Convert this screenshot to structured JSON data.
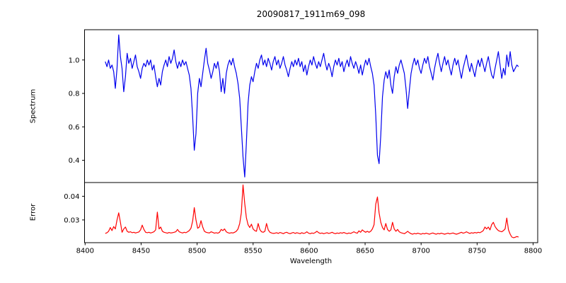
{
  "title": "20090817_1911m69_098",
  "background_color": "#ffffff",
  "axis_color": "#000000",
  "xaxis": {
    "label": "Wavelength",
    "ticks": [
      8400,
      8450,
      8500,
      8550,
      8600,
      8650,
      8700,
      8750,
      8800
    ],
    "tick_labels": [
      "8400",
      "8450",
      "8500",
      "8550",
      "8600",
      "8650",
      "8700",
      "8750",
      "8800"
    ]
  },
  "chart_data": [
    {
      "type": "line",
      "name": "spectrum",
      "ylabel": "Spectrum",
      "color": "#0000ee",
      "xlim": [
        8399.5,
        8804.1
      ],
      "ylim": [
        0.267,
        1.181
      ],
      "yticks": [
        0.4,
        0.6,
        0.8,
        1.0
      ],
      "ytick_labels": [
        "0.4",
        "0.6",
        "0.8",
        "1.0"
      ],
      "x0": 8418,
      "dx": 1.5,
      "values": [
        0.99,
        0.96,
        1.0,
        0.95,
        0.97,
        0.93,
        0.83,
        0.95,
        1.15,
        1.02,
        0.95,
        0.81,
        0.9,
        1.04,
        0.98,
        1.01,
        0.95,
        0.99,
        1.03,
        0.96,
        0.93,
        0.89,
        0.95,
        0.98,
        0.96,
        1.0,
        0.97,
        1.0,
        0.94,
        0.97,
        0.9,
        0.84,
        0.89,
        0.85,
        0.93,
        0.97,
        1.0,
        0.96,
        1.02,
        0.98,
        1.01,
        1.06,
        0.99,
        0.95,
        0.99,
        0.96,
        1.0,
        0.97,
        0.99,
        0.95,
        0.91,
        0.83,
        0.66,
        0.46,
        0.56,
        0.8,
        0.89,
        0.84,
        0.92,
        1.0,
        1.07,
        0.98,
        0.94,
        0.89,
        0.93,
        0.98,
        0.95,
        0.99,
        0.93,
        0.81,
        0.89,
        0.8,
        0.92,
        0.97,
        1.0,
        0.97,
        1.01,
        0.96,
        0.92,
        0.86,
        0.77,
        0.6,
        0.42,
        0.3,
        0.5,
        0.74,
        0.85,
        0.9,
        0.87,
        0.93,
        0.98,
        0.95,
        1.0,
        1.03,
        0.97,
        1.0,
        0.96,
        1.01,
        0.98,
        0.94,
        0.99,
        1.02,
        0.97,
        1.0,
        0.95,
        0.98,
        1.02,
        0.97,
        0.94,
        0.9,
        0.95,
        0.99,
        0.96,
        1.0,
        0.97,
        1.01,
        0.96,
        0.99,
        0.93,
        0.97,
        0.91,
        0.96,
        1.0,
        0.97,
        1.02,
        0.98,
        0.95,
        0.99,
        0.96,
        1.0,
        1.04,
        0.98,
        0.94,
        0.98,
        0.95,
        0.9,
        0.96,
        1.0,
        0.97,
        1.01,
        0.96,
        0.99,
        0.93,
        0.97,
        1.0,
        0.96,
        1.02,
        0.98,
        0.95,
        0.99,
        0.96,
        0.92,
        0.97,
        0.91,
        0.96,
        1.0,
        0.97,
        1.01,
        0.96,
        0.92,
        0.85,
        0.67,
        0.43,
        0.38,
        0.55,
        0.78,
        0.88,
        0.93,
        0.89,
        0.94,
        0.85,
        0.8,
        0.9,
        0.96,
        0.92,
        0.97,
        1.0,
        0.96,
        0.92,
        0.83,
        0.71,
        0.82,
        0.92,
        0.97,
        1.01,
        0.97,
        1.0,
        0.95,
        0.92,
        0.97,
        1.01,
        0.98,
        1.02,
        0.96,
        0.92,
        0.88,
        0.95,
        1.0,
        1.04,
        0.98,
        0.93,
        0.98,
        1.02,
        0.97,
        1.0,
        0.95,
        0.91,
        0.97,
        1.01,
        0.97,
        1.0,
        0.94,
        0.89,
        0.95,
        0.99,
        1.03,
        0.97,
        0.93,
        0.98,
        0.94,
        0.9,
        0.96,
        1.0,
        0.96,
        1.01,
        0.97,
        0.93,
        0.98,
        1.02,
        0.96,
        0.91,
        0.89,
        0.95,
        1.0,
        1.05,
        0.97,
        0.89,
        0.95,
        0.91,
        1.03,
        0.96,
        1.05,
        0.97,
        0.93,
        0.95,
        0.97,
        0.96
      ]
    },
    {
      "type": "line",
      "name": "error",
      "ylabel": "Error",
      "color": "#ff0000",
      "xlim": [
        8399.5,
        8804.1
      ],
      "ylim": [
        0.0204,
        0.0458
      ],
      "yticks": [
        0.03,
        0.04
      ],
      "ytick_labels": [
        "0.03",
        "0.04"
      ],
      "x0": 8418,
      "dx": 1.5,
      "values": [
        0.0243,
        0.0246,
        0.0252,
        0.0268,
        0.0255,
        0.0272,
        0.0262,
        0.03,
        0.033,
        0.029,
        0.0248,
        0.0262,
        0.027,
        0.0252,
        0.0248,
        0.025,
        0.0246,
        0.0248,
        0.0245,
        0.0247,
        0.0249,
        0.0258,
        0.0278,
        0.026,
        0.0248,
        0.0246,
        0.0248,
        0.0245,
        0.0247,
        0.025,
        0.0258,
        0.0333,
        0.0262,
        0.027,
        0.0252,
        0.0248,
        0.0246,
        0.0244,
        0.0247,
        0.0245,
        0.0246,
        0.0248,
        0.025,
        0.026,
        0.025,
        0.0247,
        0.0245,
        0.0248,
        0.0246,
        0.025,
        0.0255,
        0.0265,
        0.0295,
        0.0352,
        0.03,
        0.0265,
        0.027,
        0.0297,
        0.027,
        0.0252,
        0.0248,
        0.0246,
        0.0245,
        0.025,
        0.0247,
        0.0244,
        0.0246,
        0.0244,
        0.0248,
        0.026,
        0.0255,
        0.0262,
        0.025,
        0.0246,
        0.0244,
        0.0246,
        0.0245,
        0.0248,
        0.0252,
        0.0262,
        0.0285,
        0.033,
        0.0448,
        0.037,
        0.031,
        0.028,
        0.0268,
        0.0282,
        0.0262,
        0.0255,
        0.0252,
        0.0285,
        0.026,
        0.025,
        0.0248,
        0.0252,
        0.0285,
        0.0258,
        0.0248,
        0.0245,
        0.0243,
        0.0244,
        0.0246,
        0.0243,
        0.0247,
        0.0245,
        0.0242,
        0.0246,
        0.0248,
        0.0244,
        0.0242,
        0.0245,
        0.0247,
        0.0243,
        0.0246,
        0.0244,
        0.0242,
        0.0246,
        0.0243,
        0.0245,
        0.025,
        0.0244,
        0.0242,
        0.0245,
        0.0243,
        0.0247,
        0.0252,
        0.0246,
        0.0243,
        0.0245,
        0.0242,
        0.0244,
        0.0246,
        0.0243,
        0.0245,
        0.0248,
        0.0244,
        0.0242,
        0.0245,
        0.0243,
        0.0246,
        0.0244,
        0.0247,
        0.0244,
        0.0242,
        0.0245,
        0.0243,
        0.0246,
        0.025,
        0.0246,
        0.0244,
        0.0254,
        0.0248,
        0.0258,
        0.0252,
        0.0248,
        0.0252,
        0.0248,
        0.0252,
        0.0262,
        0.028,
        0.0367,
        0.0397,
        0.033,
        0.029,
        0.0268,
        0.0258,
        0.0285,
        0.026,
        0.0252,
        0.0258,
        0.029,
        0.0262,
        0.0252,
        0.026,
        0.025,
        0.0246,
        0.0244,
        0.0242,
        0.0246,
        0.0252,
        0.0246,
        0.0242,
        0.024,
        0.0243,
        0.0241,
        0.0244,
        0.0242,
        0.024,
        0.0243,
        0.0241,
        0.0244,
        0.0242,
        0.024,
        0.0243,
        0.0245,
        0.0242,
        0.024,
        0.0243,
        0.0241,
        0.0244,
        0.0242,
        0.024,
        0.0242,
        0.0244,
        0.0241,
        0.0243,
        0.0245,
        0.0242,
        0.024,
        0.0242,
        0.0245,
        0.0248,
        0.0244,
        0.0246,
        0.025,
        0.0246,
        0.0243,
        0.0246,
        0.0244,
        0.0247,
        0.0245,
        0.0248,
        0.0246,
        0.025,
        0.0255,
        0.027,
        0.0262,
        0.027,
        0.0258,
        0.028,
        0.029,
        0.0272,
        0.0262,
        0.0255,
        0.0252,
        0.025,
        0.0255,
        0.0262,
        0.0308,
        0.0258,
        0.024,
        0.0228,
        0.0225,
        0.0227,
        0.023,
        0.0228
      ]
    }
  ]
}
